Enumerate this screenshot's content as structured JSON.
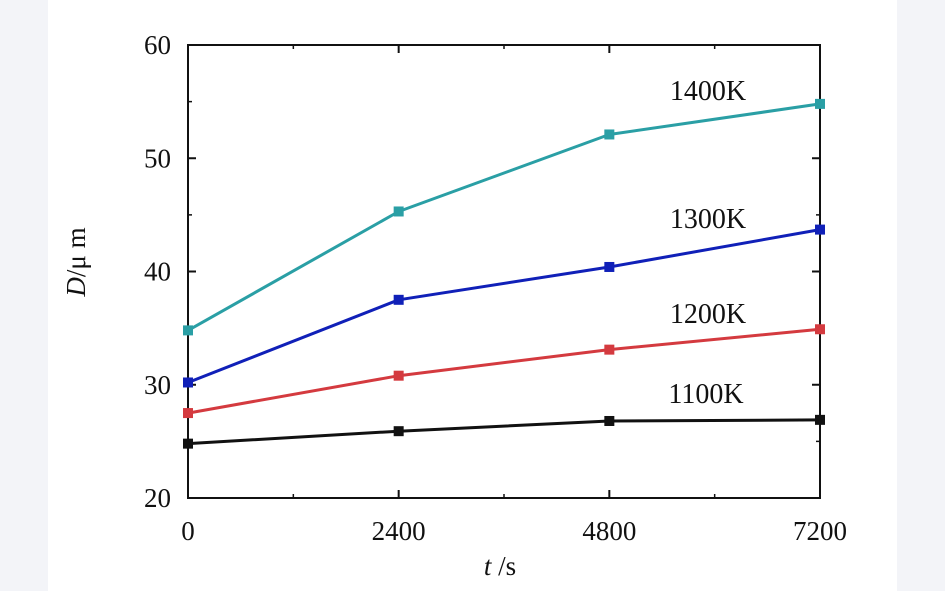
{
  "chart_data": {
    "type": "line",
    "xlabel_italic": "t",
    "xlabel_unit": " /s",
    "ylabel_italic": "D",
    "ylabel_unit": "/μ m",
    "x": [
      0,
      2400,
      4800,
      7200
    ],
    "xlim": [
      0,
      7200
    ],
    "ylim": [
      20,
      60
    ],
    "x_ticks": [
      "0",
      "2400",
      "4800",
      "7200"
    ],
    "y_ticks": [
      "20",
      "30",
      "40",
      "50",
      "60"
    ],
    "y_tick_values": [
      20,
      30,
      40,
      50,
      60
    ],
    "grid": false,
    "series": [
      {
        "name": "1400K",
        "color": "#2a9fa5",
        "values": [
          34.8,
          45.3,
          52.1,
          54.8
        ]
      },
      {
        "name": "1300K",
        "color": "#1020b8",
        "values": [
          30.2,
          37.5,
          40.4,
          43.7
        ]
      },
      {
        "name": "1200K",
        "color": "#d43a3f",
        "values": [
          27.5,
          30.8,
          33.1,
          34.9
        ]
      },
      {
        "name": "1100K",
        "color": "#111111",
        "values": [
          24.8,
          25.9,
          26.8,
          26.9
        ]
      }
    ]
  }
}
